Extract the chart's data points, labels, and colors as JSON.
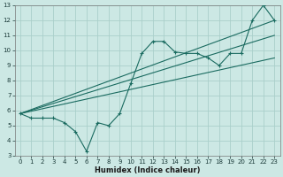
{
  "xlabel": "Humidex (Indice chaleur)",
  "xlim": [
    -0.5,
    23.5
  ],
  "ylim": [
    3,
    13
  ],
  "xticks": [
    0,
    1,
    2,
    3,
    4,
    5,
    6,
    7,
    8,
    9,
    10,
    11,
    12,
    13,
    14,
    15,
    16,
    17,
    18,
    19,
    20,
    21,
    22,
    23
  ],
  "yticks": [
    3,
    4,
    5,
    6,
    7,
    8,
    9,
    10,
    11,
    12,
    13
  ],
  "bg_color": "#cce8e4",
  "grid_color": "#aacfca",
  "line_color": "#1a6b60",
  "series_main": {
    "x": [
      0,
      1,
      2,
      3,
      4,
      5,
      6,
      7,
      8,
      9,
      10,
      11,
      12,
      13,
      14,
      15,
      16,
      17,
      18,
      19,
      20,
      21,
      22,
      23
    ],
    "y": [
      5.8,
      5.5,
      5.5,
      5.5,
      5.2,
      4.6,
      3.3,
      5.2,
      5.0,
      5.8,
      7.8,
      9.8,
      10.6,
      10.6,
      9.9,
      9.8,
      9.8,
      9.5,
      9.0,
      9.8,
      9.8,
      12.0,
      13.0,
      12.0
    ]
  },
  "trend_lines": [
    {
      "x": [
        0,
        23
      ],
      "y": [
        5.8,
        12.0
      ]
    },
    {
      "x": [
        0,
        23
      ],
      "y": [
        5.8,
        9.5
      ]
    },
    {
      "x": [
        0,
        23
      ],
      "y": [
        5.8,
        11.0
      ]
    }
  ],
  "tick_fontsize": 5,
  "xlabel_fontsize": 6
}
